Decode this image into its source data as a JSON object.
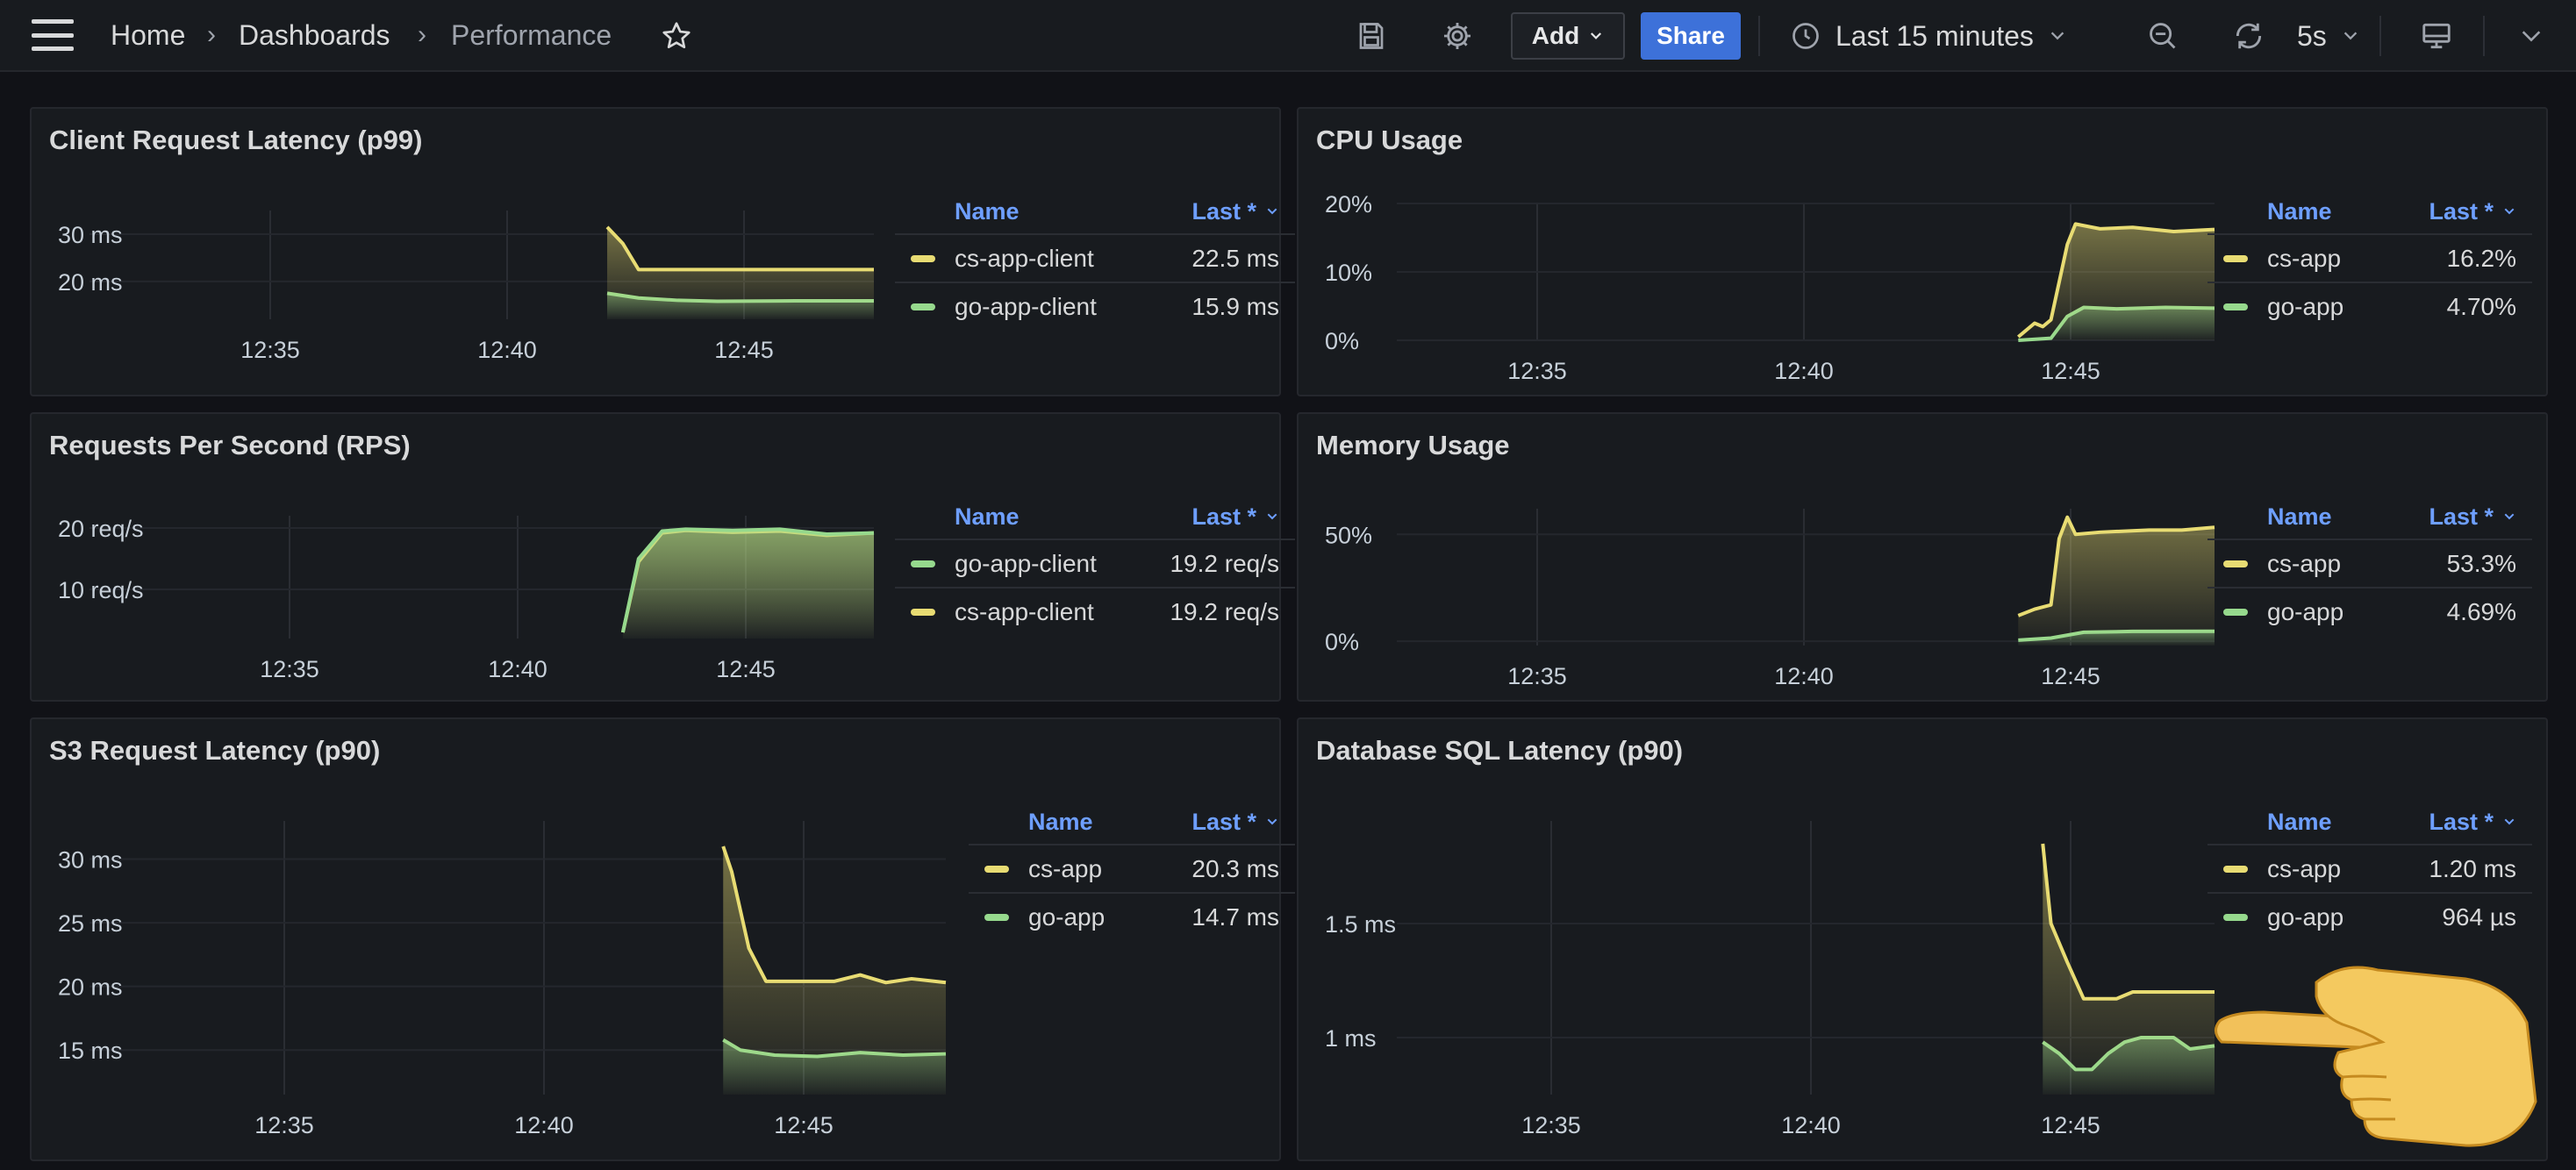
{
  "topbar": {
    "breadcrumb": [
      {
        "label": "Home"
      },
      {
        "label": "Dashboards"
      },
      {
        "label": "Performance"
      }
    ],
    "add_label": "Add",
    "share_label": "Share",
    "time_range": "Last 15 minutes",
    "refresh_interval": "5s"
  },
  "legend_headers": {
    "name": "Name",
    "last": "Last *"
  },
  "colors": {
    "yellow": "#f2cc0c",
    "yellow_line": "#e8dc73",
    "green": "#73bf69",
    "green_line": "#96d98d",
    "accent": "#6e9fff"
  },
  "panels": [
    {
      "title": "Client Request Latency (p99)",
      "legend": [
        {
          "name": "cs-app-client",
          "color": "#e8dc73",
          "last": "22.5 ms"
        },
        {
          "name": "go-app-client",
          "color": "#96d98d",
          "last": "15.9 ms"
        }
      ],
      "chart_data": {
        "type": "line",
        "x_ticks": [
          "12:35",
          "12:40",
          "12:45"
        ],
        "y_ticks": [
          "30 ms",
          "20 ms"
        ],
        "ylim": [
          12,
          35
        ],
        "series": [
          {
            "name": "cs-app-client",
            "x": [
              0.66,
              0.68,
              0.7,
              0.75,
              0.85,
              1.0
            ],
            "y": [
              31.5,
              28,
              22.5,
              22.5,
              22.5,
              22.5
            ]
          },
          {
            "name": "go-app-client",
            "x": [
              0.66,
              0.7,
              0.75,
              0.8,
              0.9,
              1.0
            ],
            "y": [
              17.5,
              16.5,
              16.0,
              15.8,
              15.9,
              15.9
            ]
          }
        ]
      }
    },
    {
      "title": "CPU Usage",
      "legend": [
        {
          "name": "cs-app",
          "color": "#e8dc73",
          "last": "16.2%"
        },
        {
          "name": "go-app",
          "color": "#96d98d",
          "last": "4.70%"
        }
      ],
      "chart_data": {
        "type": "line",
        "x_ticks": [
          "12:35",
          "12:40",
          "12:45"
        ],
        "y_ticks": [
          "20%",
          "10%",
          "0%"
        ],
        "ylim": [
          0,
          20
        ],
        "series": [
          {
            "name": "cs-app",
            "x": [
              0.76,
              0.78,
              0.79,
              0.8,
              0.82,
              0.83,
              0.86,
              0.9,
              0.95,
              1.0
            ],
            "y": [
              0.5,
              2.5,
              2.0,
              3.0,
              14,
              17,
              16.3,
              16.5,
              15.9,
              16.2
            ]
          },
          {
            "name": "go-app",
            "x": [
              0.76,
              0.8,
              0.82,
              0.84,
              0.88,
              0.94,
              1.0
            ],
            "y": [
              0,
              0.3,
              3.5,
              4.8,
              4.6,
              4.8,
              4.7
            ]
          }
        ]
      }
    },
    {
      "title": "Requests Per Second (RPS)",
      "legend": [
        {
          "name": "go-app-client",
          "color": "#96d98d",
          "last": "19.2 req/s"
        },
        {
          "name": "cs-app-client",
          "color": "#e8dc73",
          "last": "19.2 req/s"
        }
      ],
      "chart_data": {
        "type": "line",
        "x_ticks": [
          "12:35",
          "12:40",
          "12:45"
        ],
        "y_ticks": [
          "20 req/s",
          "10 req/s"
        ],
        "ylim": [
          2,
          22
        ],
        "series": [
          {
            "name": "go-app-client",
            "x": [
              0.68,
              0.7,
              0.73,
              0.76,
              0.82,
              0.88,
              0.94,
              1.0
            ],
            "y": [
              3,
              15,
              19.5,
              19.8,
              19.6,
              19.8,
              19.0,
              19.2
            ]
          },
          {
            "name": "cs-app-client",
            "x": [
              0.68,
              0.7,
              0.73,
              0.76,
              0.82,
              0.88,
              0.94,
              1.0
            ],
            "y": [
              3,
              14.5,
              19.2,
              19.6,
              19.3,
              19.5,
              18.8,
              19.2
            ]
          }
        ]
      }
    },
    {
      "title": "Memory Usage",
      "legend": [
        {
          "name": "cs-app",
          "color": "#e8dc73",
          "last": "53.3%"
        },
        {
          "name": "go-app",
          "color": "#96d98d",
          "last": "4.69%"
        }
      ],
      "chart_data": {
        "type": "line",
        "x_ticks": [
          "12:35",
          "12:40",
          "12:45"
        ],
        "y_ticks": [
          "50%",
          "0%"
        ],
        "ylim": [
          -2,
          62
        ],
        "series": [
          {
            "name": "cs-app",
            "x": [
              0.76,
              0.78,
              0.8,
              0.81,
              0.82,
              0.83,
              0.86,
              0.92,
              0.96,
              1.0
            ],
            "y": [
              12,
              15,
              17,
              48,
              58,
              50,
              51,
              52,
              52,
              53.3
            ]
          },
          {
            "name": "go-app",
            "x": [
              0.76,
              0.8,
              0.84,
              0.9,
              1.0
            ],
            "y": [
              0.5,
              1.5,
              4.2,
              4.6,
              4.69
            ]
          }
        ]
      }
    },
    {
      "title": "S3 Request Latency (p90)",
      "legend": [
        {
          "name": "cs-app",
          "color": "#e8dc73",
          "last": "20.3 ms"
        },
        {
          "name": "go-app",
          "color": "#96d98d",
          "last": "14.7 ms"
        }
      ],
      "chart_data": {
        "type": "line",
        "x_ticks": [
          "12:35",
          "12:40",
          "12:45"
        ],
        "y_ticks": [
          "30 ms",
          "25 ms",
          "20 ms",
          "15 ms"
        ],
        "ylim": [
          11.5,
          33
        ],
        "series": [
          {
            "name": "cs-app",
            "x": [
              0.74,
              0.75,
              0.77,
              0.79,
              0.82,
              0.87,
              0.9,
              0.93,
              0.96,
              1.0
            ],
            "y": [
              31,
              29,
              23,
              20.4,
              20.4,
              20.4,
              20.9,
              20.3,
              20.6,
              20.3
            ]
          },
          {
            "name": "go-app",
            "x": [
              0.74,
              0.76,
              0.8,
              0.85,
              0.9,
              0.95,
              1.0
            ],
            "y": [
              15.8,
              15.0,
              14.6,
              14.5,
              14.8,
              14.6,
              14.7
            ]
          }
        ]
      }
    },
    {
      "title": "Database SQL Latency (p90)",
      "legend": [
        {
          "name": "cs-app",
          "color": "#e8dc73",
          "last": "1.20 ms"
        },
        {
          "name": "go-app",
          "color": "#96d98d",
          "last": "964 µs"
        }
      ],
      "chart_data": {
        "type": "line",
        "x_ticks": [
          "12:35",
          "12:40",
          "12:45"
        ],
        "y_ticks": [
          "1.5 ms",
          "1 ms"
        ],
        "ylim": [
          0.75,
          1.95
        ],
        "series": [
          {
            "name": "cs-app",
            "x": [
              0.79,
              0.8,
              0.82,
              0.84,
              0.88,
              0.9,
              0.94,
              1.0
            ],
            "y": [
              1.85,
              1.5,
              1.33,
              1.17,
              1.17,
              1.2,
              1.2,
              1.2
            ]
          },
          {
            "name": "go-app",
            "x": [
              0.79,
              0.81,
              0.83,
              0.85,
              0.87,
              0.89,
              0.91,
              0.95,
              0.97,
              1.0
            ],
            "y": [
              0.98,
              0.93,
              0.86,
              0.86,
              0.93,
              0.98,
              1.0,
              1.0,
              0.95,
              0.964
            ]
          }
        ]
      }
    }
  ]
}
